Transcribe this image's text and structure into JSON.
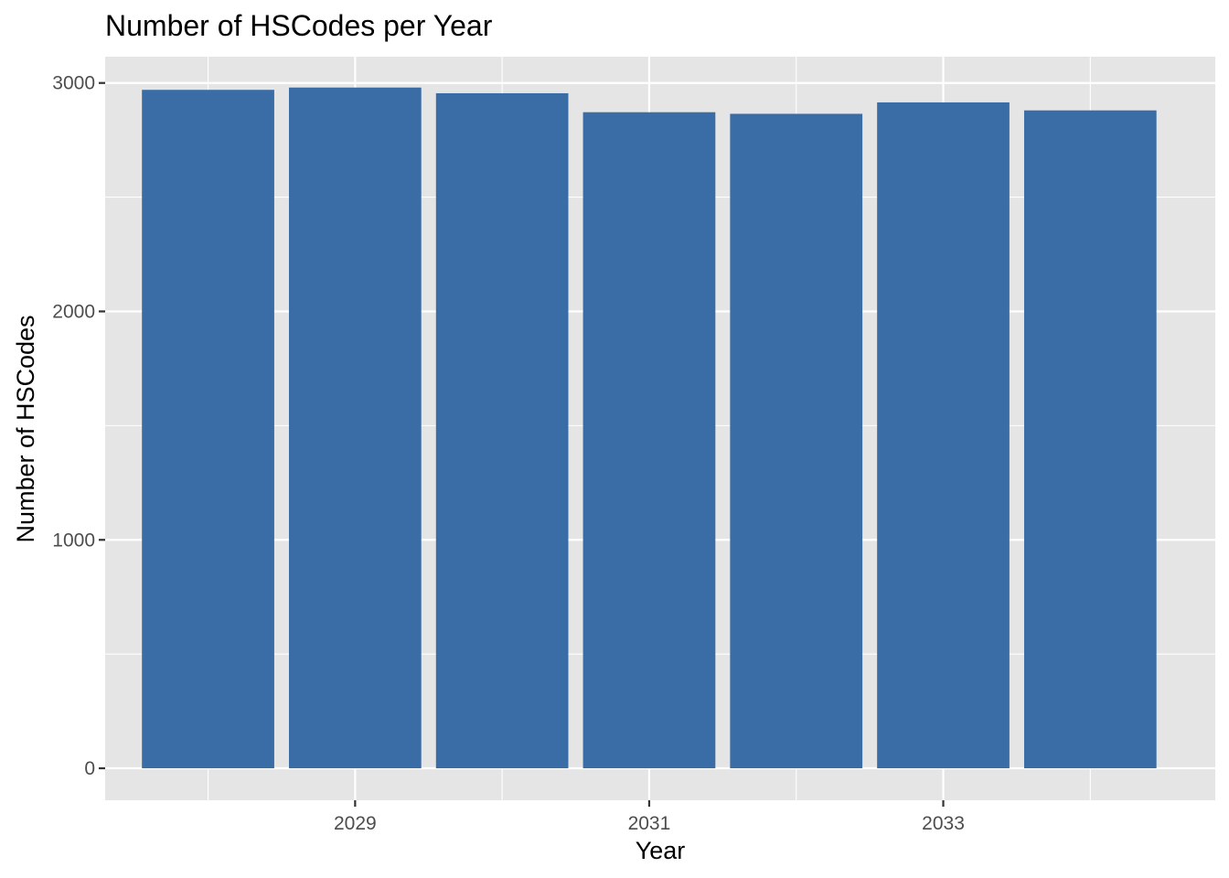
{
  "chart_data": {
    "type": "bar",
    "title": "Number of HSCodes per Year",
    "xlabel": "Year",
    "ylabel": "Number of HSCodes",
    "x": [
      2028,
      2029,
      2030,
      2031,
      2032,
      2033,
      2034
    ],
    "values": [
      2970,
      2980,
      2955,
      2872,
      2865,
      2915,
      2880
    ],
    "x_ticks": [
      2029,
      2031,
      2033
    ],
    "x_tick_labels": [
      "2029",
      "2031",
      "2033"
    ],
    "y_ticks": [
      0,
      1000,
      2000,
      3000
    ],
    "y_tick_labels": [
      "0",
      "1000",
      "2000",
      "3000"
    ],
    "xlim": [
      2027.3,
      2034.85
    ],
    "ylim": [
      -140,
      3115
    ],
    "grid": true,
    "legend": "none",
    "bar_color": "#3A6DA5",
    "panel_color": "#E5E5E5",
    "grid_color": "#FFFFFF"
  }
}
